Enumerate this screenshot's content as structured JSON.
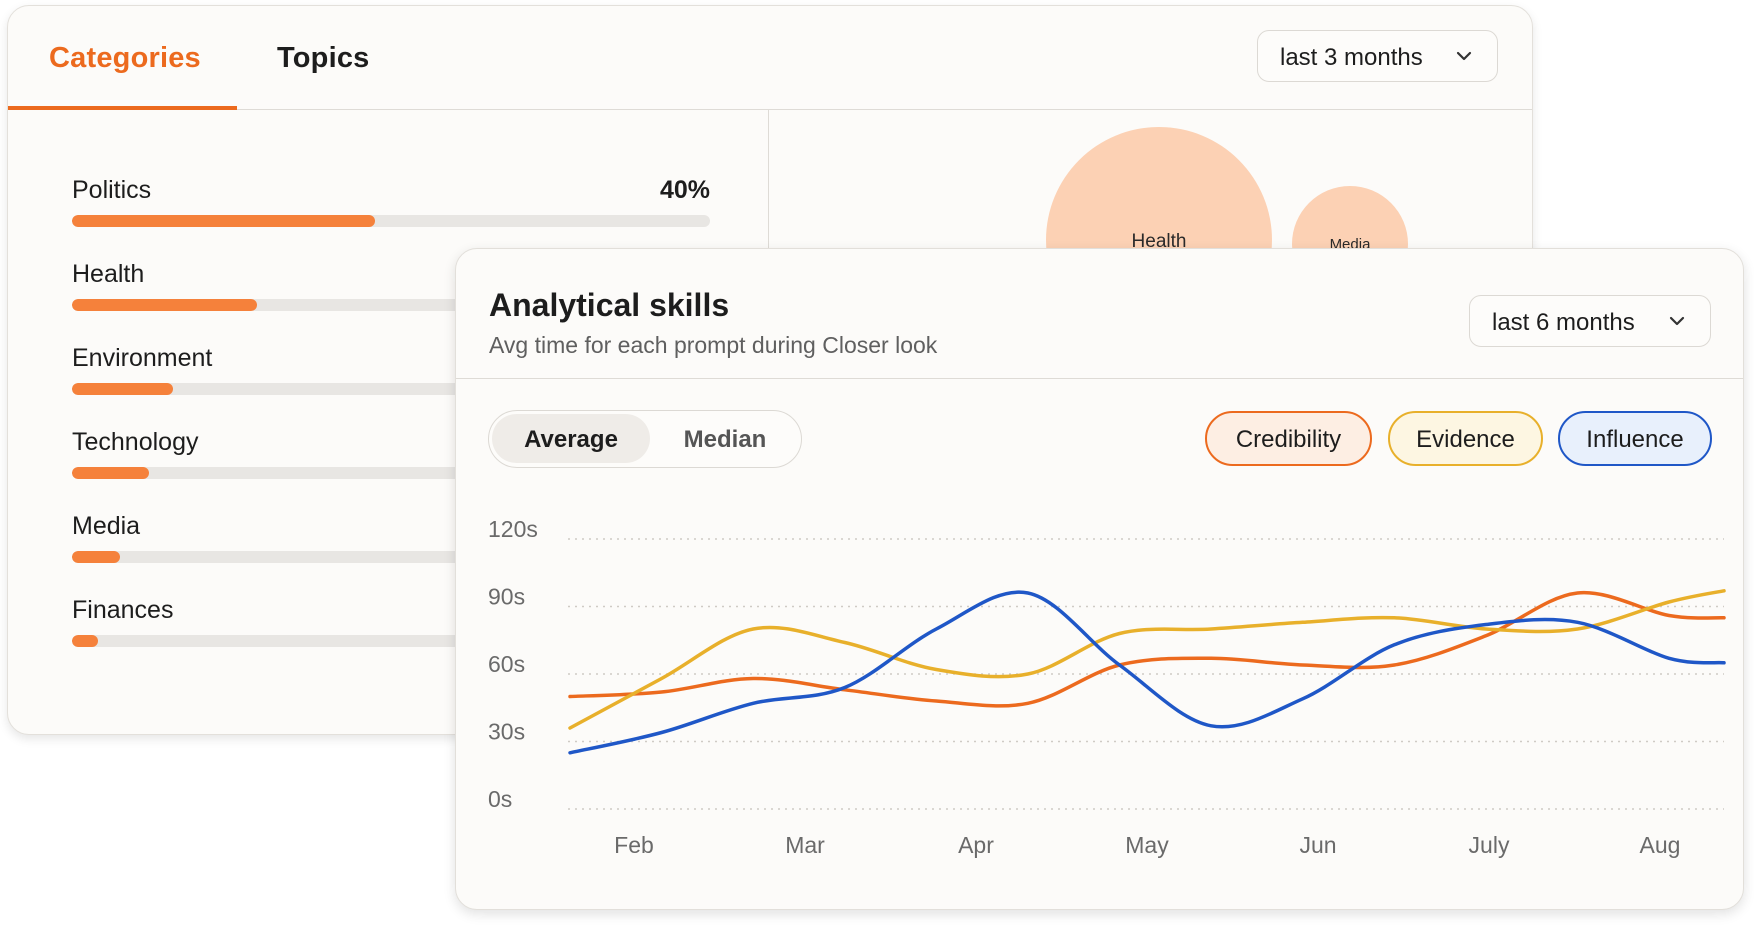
{
  "categories_panel": {
    "tabs": [
      {
        "label": "Categories",
        "active": true
      },
      {
        "label": "Topics",
        "active": false
      }
    ],
    "range_dropdown": {
      "label": "last 3 months"
    },
    "items": [
      {
        "label": "Politics",
        "percent": "40%",
        "fill": 0.475
      },
      {
        "label": "Health",
        "percent": "",
        "fill": 0.29
      },
      {
        "label": "Environment",
        "percent": "",
        "fill": 0.158
      },
      {
        "label": "Technology",
        "percent": "",
        "fill": 0.12
      },
      {
        "label": "Media",
        "percent": "",
        "fill": 0.075
      },
      {
        "label": "Finances",
        "percent": "",
        "fill": 0.04
      }
    ],
    "bubbles": [
      {
        "label": "Health"
      },
      {
        "label": "Media"
      }
    ],
    "accent_color": "#ec6a1e",
    "bar_color": "#f5813b",
    "bubble_color": "#fcd1b4"
  },
  "analytical_panel": {
    "title": "Analytical skills",
    "subtitle": "Avg time for each prompt during Closer look",
    "range_dropdown": {
      "label": "last 6 months"
    },
    "toggle": {
      "average_label": "Average",
      "median_label": "Median",
      "selected": "Average"
    },
    "legend": [
      {
        "label": "Credibility",
        "color": "#ec6a1e"
      },
      {
        "label": "Evidence",
        "color": "#e8b02b"
      },
      {
        "label": "Influence",
        "color": "#1f57c7"
      }
    ]
  },
  "chart_data": {
    "type": "line",
    "x_labels": [
      "Feb",
      "Mar",
      "Apr",
      "May",
      "Jun",
      "July",
      "Aug"
    ],
    "y_ticks": [
      "120s",
      "90s",
      "60s",
      "30s",
      "0s"
    ],
    "ylim": [
      0,
      120
    ],
    "grid": true,
    "legend_position": "top-right",
    "series": [
      {
        "name": "Credibility",
        "color": "#ec6a1e",
        "points": [
          [
            0,
            50
          ],
          [
            0.5,
            52
          ],
          [
            1,
            58
          ],
          [
            1.5,
            53
          ],
          [
            2,
            48
          ],
          [
            2.5,
            47
          ],
          [
            3,
            64
          ],
          [
            3.5,
            67
          ],
          [
            4,
            64
          ],
          [
            4.5,
            64
          ],
          [
            5,
            77
          ],
          [
            5.5,
            96
          ],
          [
            6,
            86
          ],
          [
            6.3,
            85
          ]
        ]
      },
      {
        "name": "Evidence",
        "color": "#e8b02b",
        "points": [
          [
            0,
            36
          ],
          [
            0.5,
            58
          ],
          [
            1,
            80
          ],
          [
            1.5,
            74
          ],
          [
            2,
            62
          ],
          [
            2.5,
            60
          ],
          [
            3,
            78
          ],
          [
            3.5,
            80
          ],
          [
            4,
            83
          ],
          [
            4.5,
            85
          ],
          [
            5,
            80
          ],
          [
            5.5,
            80
          ],
          [
            6,
            92
          ],
          [
            6.3,
            97
          ]
        ]
      },
      {
        "name": "Influence",
        "color": "#1f57c7",
        "points": [
          [
            0,
            25
          ],
          [
            0.5,
            34
          ],
          [
            1,
            47
          ],
          [
            1.5,
            54
          ],
          [
            2,
            80
          ],
          [
            2.5,
            96
          ],
          [
            3,
            64
          ],
          [
            3.5,
            37
          ],
          [
            4,
            49
          ],
          [
            4.5,
            73
          ],
          [
            5,
            82
          ],
          [
            5.5,
            83
          ],
          [
            6,
            67
          ],
          [
            6.3,
            65
          ]
        ]
      }
    ]
  }
}
